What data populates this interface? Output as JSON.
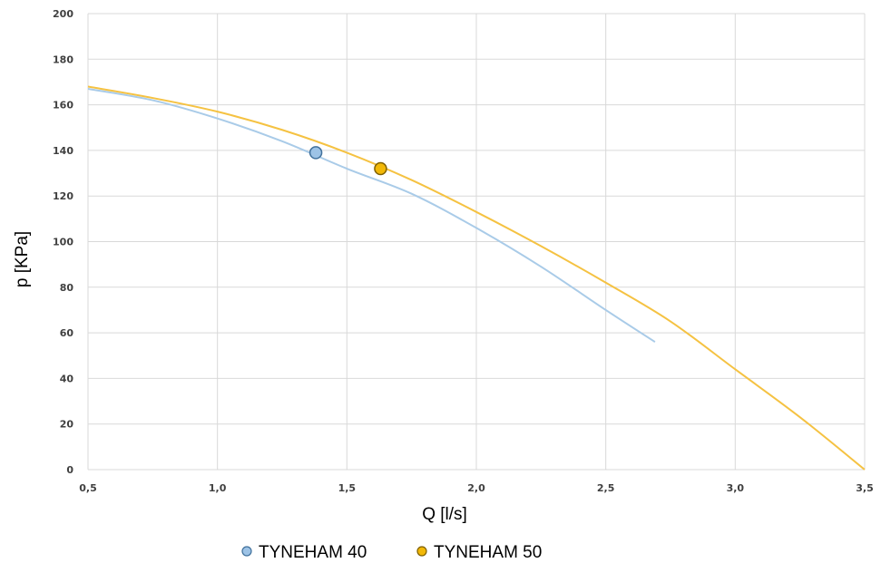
{
  "chart_data": {
    "type": "line",
    "title": "",
    "xlabel": "Q [l/s]",
    "ylabel": "p [KPa]",
    "xlim": [
      0.5,
      3.5
    ],
    "ylim": [
      0,
      200
    ],
    "x_ticks": [
      "0,5",
      "1,0",
      "1,5",
      "2,0",
      "2,5",
      "3,0",
      "3,5"
    ],
    "y_ticks": [
      "0",
      "20",
      "40",
      "60",
      "80",
      "100",
      "120",
      "140",
      "160",
      "180",
      "200"
    ],
    "grid": true,
    "legend_position": "bottom",
    "series": [
      {
        "name": "TYNEHAM 40",
        "color": "#a9cbe8",
        "marker_color": "#9dc3e6",
        "x": [
          0.5,
          0.75,
          1.0,
          1.25,
          1.5,
          1.75,
          2.0,
          2.25,
          2.5,
          2.69
        ],
        "y": [
          167,
          162,
          154,
          144,
          132,
          121,
          106,
          89,
          70,
          56
        ],
        "operating_point": {
          "x": 1.38,
          "y": 139
        }
      },
      {
        "name": "TYNEHAM 50",
        "color": "#f5c242",
        "marker_color": "#f2b807",
        "x": [
          0.5,
          0.75,
          1.0,
          1.25,
          1.5,
          1.75,
          2.0,
          2.25,
          2.5,
          2.75,
          3.0,
          3.25,
          3.5
        ],
        "y": [
          168,
          163,
          157,
          149,
          139,
          127,
          113,
          98,
          82,
          65,
          44,
          23,
          0
        ],
        "operating_point": {
          "x": 1.63,
          "y": 132
        }
      }
    ]
  }
}
